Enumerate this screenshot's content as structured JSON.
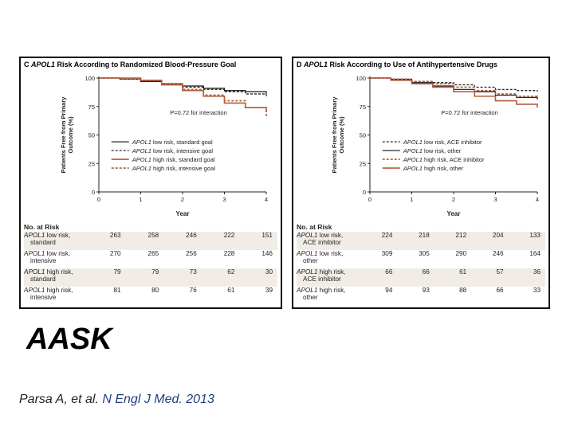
{
  "chart_data": [
    {
      "type": "line",
      "panel_letter": "C",
      "title_gene": "APOL1",
      "title_rest": " Risk According to Randomized Blood-Pressure Goal",
      "ylabel_line1": "Patients Free from Primary",
      "ylabel_line2": "Outcome (%)",
      "xlabel": "Year",
      "xlim": [
        0,
        4
      ],
      "ylim": [
        0,
        100
      ],
      "xticks": [
        0,
        1,
        2,
        3,
        4
      ],
      "yticks": [
        0,
        25,
        50,
        75,
        100
      ],
      "pvalue": "P=0.72 for interaction",
      "series": [
        {
          "name": "APOL1 low risk, standard goal",
          "gene": "APOL1",
          "label_rest": " low risk, standard goal",
          "color": "#111111",
          "dash": "solid",
          "x": [
            0,
            0.5,
            1,
            1.5,
            2,
            2.5,
            3,
            3.5,
            4
          ],
          "y": [
            100,
            99,
            97,
            95,
            93,
            91,
            89,
            88,
            86
          ]
        },
        {
          "name": "APOL1 low risk, intensive goal",
          "gene": "APOL1",
          "label_rest": " low risk, intensive goal",
          "color": "#111111",
          "dash": "dashed",
          "x": [
            0,
            0.5,
            1,
            1.5,
            2,
            2.5,
            3,
            3.5,
            4
          ],
          "y": [
            100,
            99,
            97,
            95,
            92,
            90,
            88,
            86,
            84
          ]
        },
        {
          "name": "APOL1 high risk, standard goal",
          "gene": "APOL1",
          "label_rest": " high risk, standard goal",
          "color": "#b55a3c",
          "dash": "solid",
          "x": [
            0,
            0.5,
            1,
            1.5,
            2,
            2.5,
            3,
            3.5,
            4
          ],
          "y": [
            100,
            100,
            98,
            94,
            89,
            84,
            78,
            74,
            70
          ]
        },
        {
          "name": "APOL1 high risk, intensive goal",
          "gene": "APOL1",
          "label_rest": " high risk, intensive goal",
          "color": "#b55a3c",
          "dash": "dashed",
          "x": [
            0,
            0.5,
            1,
            1.5,
            2,
            2.5,
            3,
            3.5,
            4
          ],
          "y": [
            100,
            99,
            98,
            95,
            90,
            85,
            80,
            74,
            66
          ]
        }
      ],
      "at_risk": {
        "heading": "No. at Risk",
        "rows": [
          {
            "gene": "APOL1",
            "label": " low risk,",
            "sub": "standard",
            "values": [
              "263",
              "258",
              "246",
              "222",
              "151"
            ]
          },
          {
            "gene": "APOL1",
            "label": " low risk,",
            "sub": "intensive",
            "values": [
              "270",
              "265",
              "256",
              "228",
              "146"
            ]
          },
          {
            "gene": "APOL1",
            "label": " high risk,",
            "sub": "standard",
            "values": [
              "79",
              "79",
              "73",
              "62",
              "30"
            ]
          },
          {
            "gene": "APOL1",
            "label": " high risk,",
            "sub": "intensive",
            "values": [
              "81",
              "80",
              "76",
              "61",
              "39"
            ]
          }
        ]
      }
    },
    {
      "type": "line",
      "panel_letter": "D",
      "title_gene": "APOL1",
      "title_rest": " Risk According to Use of Antihypertensive Drugs",
      "ylabel_line1": "Patients Free from Primary",
      "ylabel_line2": "Outcome (%)",
      "xlabel": "Year",
      "xlim": [
        0,
        4
      ],
      "ylim": [
        0,
        100
      ],
      "xticks": [
        0,
        1,
        2,
        3,
        4
      ],
      "yticks": [
        0,
        25,
        50,
        75,
        100
      ],
      "pvalue": "P=0.72 for interaction",
      "series": [
        {
          "name": "APOL1 low risk, ACE inhibitor",
          "gene": "APOL1",
          "label_rest": " low risk, ACE inhibitor",
          "color": "#111111",
          "dash": "dashed",
          "x": [
            0,
            0.5,
            1,
            1.5,
            2,
            2.5,
            3,
            3.5,
            4
          ],
          "y": [
            100,
            99,
            97,
            96,
            94,
            92,
            90,
            89,
            88
          ]
        },
        {
          "name": "APOL1 low risk, other",
          "gene": "APOL1",
          "label_rest": " low risk, other",
          "color": "#111111",
          "dash": "solid",
          "x": [
            0,
            0.5,
            1,
            1.5,
            2,
            2.5,
            3,
            3.5,
            4
          ],
          "y": [
            100,
            99,
            96,
            93,
            90,
            88,
            85,
            83,
            81
          ]
        },
        {
          "name": "APOL1 high risk, ACE inhibitor",
          "gene": "APOL1",
          "label_rest": " high risk, ACE inhibitor",
          "color": "#b55a3c",
          "dash": "dashed",
          "x": [
            0,
            0.5,
            1,
            1.5,
            2,
            2.5,
            3,
            3.5,
            4
          ],
          "y": [
            100,
            99,
            97,
            95,
            92,
            89,
            86,
            84,
            82
          ]
        },
        {
          "name": "APOL1 high risk, other",
          "gene": "APOL1",
          "label_rest": " high risk, other",
          "color": "#b55a3c",
          "dash": "solid",
          "x": [
            0,
            0.5,
            1,
            1.5,
            2,
            2.5,
            3,
            3.5,
            4
          ],
          "y": [
            100,
            98,
            95,
            92,
            88,
            84,
            80,
            77,
            74
          ]
        }
      ],
      "at_risk": {
        "heading": "No. at Risk",
        "rows": [
          {
            "gene": "APOL1",
            "label": " low risk,",
            "sub": "ACE inhibitor",
            "values": [
              "224",
              "218",
              "212",
              "204",
              "133"
            ]
          },
          {
            "gene": "APOL1",
            "label": " low risk,",
            "sub": "other",
            "values": [
              "309",
              "305",
              "290",
              "246",
              "164"
            ]
          },
          {
            "gene": "APOL1",
            "label": " high risk,",
            "sub": "ACE inhibitor",
            "values": [
              "66",
              "66",
              "61",
              "57",
              "36"
            ]
          },
          {
            "gene": "APOL1",
            "label": " high risk,",
            "sub": "other",
            "values": [
              "94",
              "93",
              "88",
              "66",
              "33"
            ]
          }
        ]
      }
    }
  ],
  "slide": {
    "heading": "AASK",
    "citation_authors": "Parsa A, et al. ",
    "citation_journal": "N Engl J Med. 2013"
  }
}
